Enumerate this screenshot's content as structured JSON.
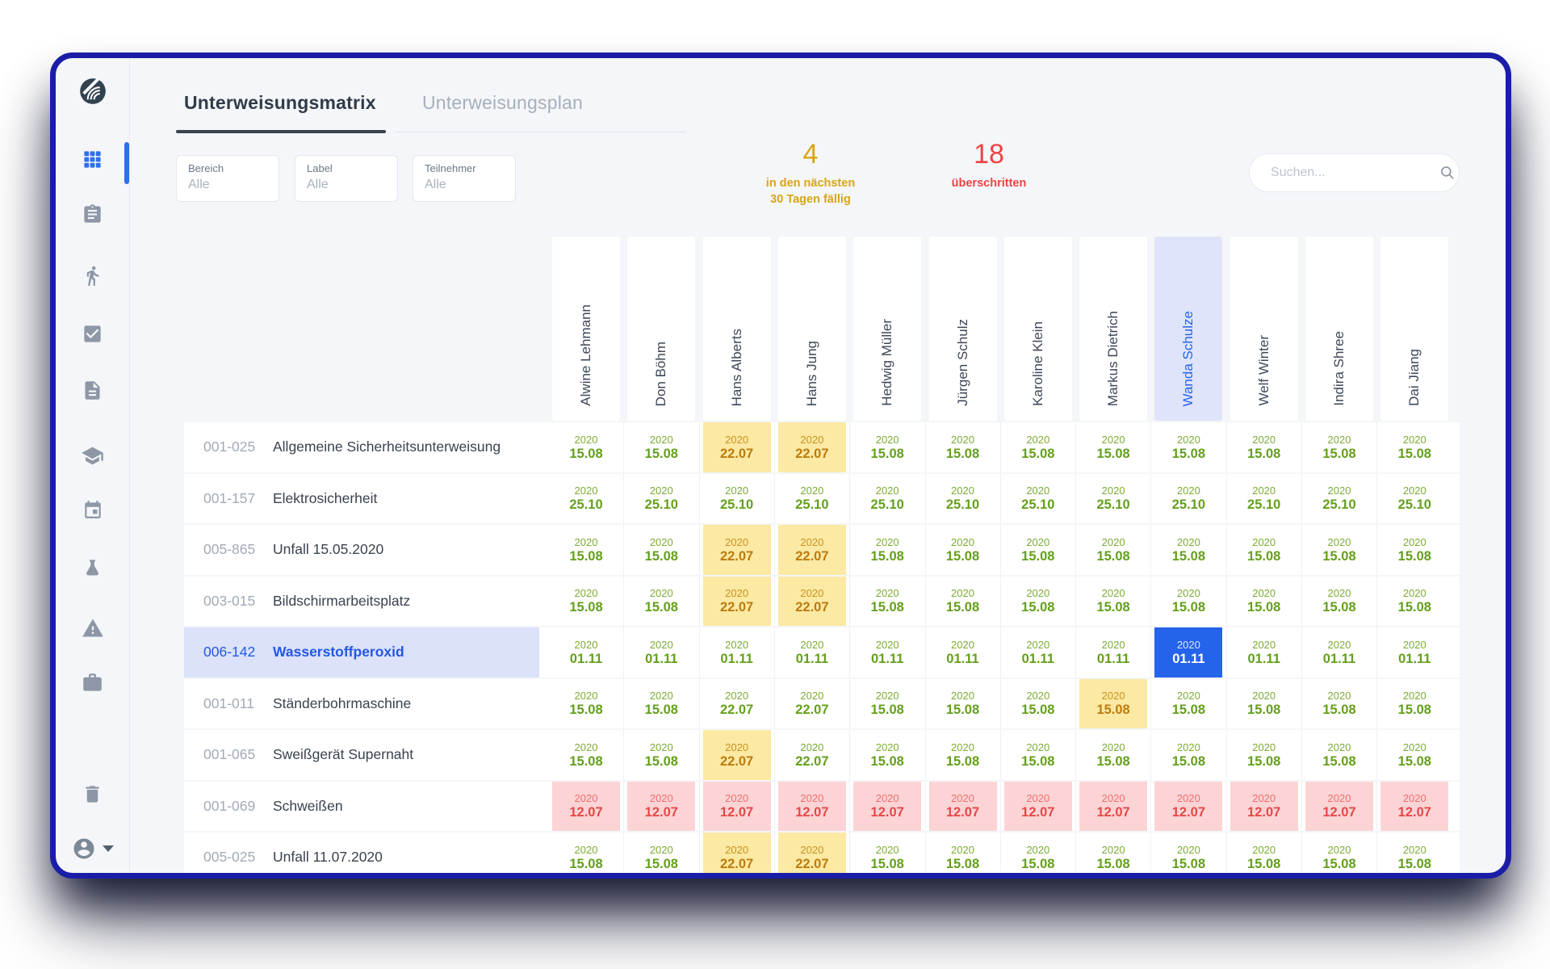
{
  "tabs": [
    {
      "label": "Unterweisungsmatrix",
      "active": true
    },
    {
      "label": "Unterweisungsplan",
      "active": false
    }
  ],
  "filters": [
    {
      "label": "Bereich",
      "value": "Alle"
    },
    {
      "label": "Label",
      "value": "Alle"
    },
    {
      "label": "Teilnehmer",
      "value": "Alle"
    }
  ],
  "stats": [
    {
      "value": "4",
      "caption_lines": [
        "in den nächsten",
        "30 Tagen fällig"
      ],
      "color": "#D9A514"
    },
    {
      "value": "18",
      "caption_lines": [
        "überschritten"
      ],
      "color": "#EE4444"
    }
  ],
  "search": {
    "placeholder": "Suchen..."
  },
  "sidebar": {
    "items": [
      {
        "icon": "logo"
      },
      {
        "icon": "grid",
        "active": true
      },
      {
        "icon": "clipboard"
      },
      {
        "icon": "walking-person"
      },
      {
        "icon": "checkbox"
      },
      {
        "icon": "document"
      },
      {
        "icon": "graduation-cap"
      },
      {
        "icon": "calendar"
      },
      {
        "icon": "flask"
      },
      {
        "icon": "warning-triangle"
      },
      {
        "icon": "briefcase"
      },
      {
        "icon": "trash"
      },
      {
        "icon": "account"
      }
    ]
  },
  "matrix": {
    "people": [
      {
        "name": "Alwine Lehmann",
        "highlighted": false
      },
      {
        "name": "Don Böhm",
        "highlighted": false
      },
      {
        "name": "Hans Alberts",
        "highlighted": false
      },
      {
        "name": "Hans Jung",
        "highlighted": false
      },
      {
        "name": "Hedwig Müller",
        "highlighted": false
      },
      {
        "name": "Jürgen Schulz",
        "highlighted": false
      },
      {
        "name": "Karoline Klein",
        "highlighted": false
      },
      {
        "name": "Markus Dietrich",
        "highlighted": false
      },
      {
        "name": "Wanda Schulze",
        "highlighted": true
      },
      {
        "name": "Welf Winter",
        "highlighted": false
      },
      {
        "name": "Indira Shree",
        "highlighted": false
      },
      {
        "name": "Dai Jiang",
        "highlighted": false
      }
    ],
    "rows": [
      {
        "code": "001-025",
        "title": "Allgemeine Sicherheitsunterweisung",
        "selected": false,
        "cells": [
          {
            "year": "2020",
            "date": "15.08",
            "status": "ok"
          },
          {
            "year": "2020",
            "date": "15.08",
            "status": "ok"
          },
          {
            "year": "2020",
            "date": "22.07",
            "status": "due"
          },
          {
            "year": "2020",
            "date": "22.07",
            "status": "due"
          },
          {
            "year": "2020",
            "date": "15.08",
            "status": "ok"
          },
          {
            "year": "2020",
            "date": "15.08",
            "status": "ok"
          },
          {
            "year": "2020",
            "date": "15.08",
            "status": "ok"
          },
          {
            "year": "2020",
            "date": "15.08",
            "status": "ok"
          },
          {
            "year": "2020",
            "date": "15.08",
            "status": "ok"
          },
          {
            "year": "2020",
            "date": "15.08",
            "status": "ok"
          },
          {
            "year": "2020",
            "date": "15.08",
            "status": "ok"
          },
          {
            "year": "2020",
            "date": "15.08",
            "status": "ok"
          }
        ]
      },
      {
        "code": "001-157",
        "title": "Elektrosicherheit",
        "selected": false,
        "cells": [
          {
            "year": "2020",
            "date": "25.10",
            "status": "ok"
          },
          {
            "year": "2020",
            "date": "25.10",
            "status": "ok"
          },
          {
            "year": "2020",
            "date": "25.10",
            "status": "ok"
          },
          {
            "year": "2020",
            "date": "25.10",
            "status": "ok"
          },
          {
            "year": "2020",
            "date": "25.10",
            "status": "ok"
          },
          {
            "year": "2020",
            "date": "25.10",
            "status": "ok"
          },
          {
            "year": "2020",
            "date": "25.10",
            "status": "ok"
          },
          {
            "year": "2020",
            "date": "25.10",
            "status": "ok"
          },
          {
            "year": "2020",
            "date": "25.10",
            "status": "ok"
          },
          {
            "year": "2020",
            "date": "25.10",
            "status": "ok"
          },
          {
            "year": "2020",
            "date": "25.10",
            "status": "ok"
          },
          {
            "year": "2020",
            "date": "25.10",
            "status": "ok"
          }
        ]
      },
      {
        "code": "005-865",
        "title": "Unfall 15.05.2020",
        "selected": false,
        "cells": [
          {
            "year": "2020",
            "date": "15.08",
            "status": "ok"
          },
          {
            "year": "2020",
            "date": "15.08",
            "status": "ok"
          },
          {
            "year": "2020",
            "date": "22.07",
            "status": "due"
          },
          {
            "year": "2020",
            "date": "22.07",
            "status": "due"
          },
          {
            "year": "2020",
            "date": "15.08",
            "status": "ok"
          },
          {
            "year": "2020",
            "date": "15.08",
            "status": "ok"
          },
          {
            "year": "2020",
            "date": "15.08",
            "status": "ok"
          },
          {
            "year": "2020",
            "date": "15.08",
            "status": "ok"
          },
          {
            "year": "2020",
            "date": "15.08",
            "status": "ok"
          },
          {
            "year": "2020",
            "date": "15.08",
            "status": "ok"
          },
          {
            "year": "2020",
            "date": "15.08",
            "status": "ok"
          },
          {
            "year": "2020",
            "date": "15.08",
            "status": "ok"
          }
        ]
      },
      {
        "code": "003-015",
        "title": "Bildschirmarbeitsplatz",
        "selected": false,
        "cells": [
          {
            "year": "2020",
            "date": "15.08",
            "status": "ok"
          },
          {
            "year": "2020",
            "date": "15.08",
            "status": "ok"
          },
          {
            "year": "2020",
            "date": "22.07",
            "status": "due"
          },
          {
            "year": "2020",
            "date": "22.07",
            "status": "due"
          },
          {
            "year": "2020",
            "date": "15.08",
            "status": "ok"
          },
          {
            "year": "2020",
            "date": "15.08",
            "status": "ok"
          },
          {
            "year": "2020",
            "date": "15.08",
            "status": "ok"
          },
          {
            "year": "2020",
            "date": "15.08",
            "status": "ok"
          },
          {
            "year": "2020",
            "date": "15.08",
            "status": "ok"
          },
          {
            "year": "2020",
            "date": "15.08",
            "status": "ok"
          },
          {
            "year": "2020",
            "date": "15.08",
            "status": "ok"
          },
          {
            "year": "2020",
            "date": "15.08",
            "status": "ok"
          }
        ]
      },
      {
        "code": "006-142",
        "title": "Wasserstoffperoxid",
        "selected": true,
        "cells": [
          {
            "year": "2020",
            "date": "01.11",
            "status": "ok"
          },
          {
            "year": "2020",
            "date": "01.11",
            "status": "ok"
          },
          {
            "year": "2020",
            "date": "01.11",
            "status": "ok"
          },
          {
            "year": "2020",
            "date": "01.11",
            "status": "ok"
          },
          {
            "year": "2020",
            "date": "01.11",
            "status": "ok"
          },
          {
            "year": "2020",
            "date": "01.11",
            "status": "ok"
          },
          {
            "year": "2020",
            "date": "01.11",
            "status": "ok"
          },
          {
            "year": "2020",
            "date": "01.11",
            "status": "ok"
          },
          {
            "year": "2020",
            "date": "01.11",
            "status": "selected"
          },
          {
            "year": "2020",
            "date": "01.11",
            "status": "ok"
          },
          {
            "year": "2020",
            "date": "01.11",
            "status": "ok"
          },
          {
            "year": "2020",
            "date": "01.11",
            "status": "ok"
          }
        ]
      },
      {
        "code": "001-011",
        "title": "Ständerbohrmaschine",
        "selected": false,
        "cells": [
          {
            "year": "2020",
            "date": "15.08",
            "status": "ok"
          },
          {
            "year": "2020",
            "date": "15.08",
            "status": "ok"
          },
          {
            "year": "2020",
            "date": "22.07",
            "status": "ok"
          },
          {
            "year": "2020",
            "date": "22.07",
            "status": "ok"
          },
          {
            "year": "2020",
            "date": "15.08",
            "status": "ok"
          },
          {
            "year": "2020",
            "date": "15.08",
            "status": "ok"
          },
          {
            "year": "2020",
            "date": "15.08",
            "status": "ok"
          },
          {
            "year": "2020",
            "date": "15.08",
            "status": "due"
          },
          {
            "year": "2020",
            "date": "15.08",
            "status": "ok"
          },
          {
            "year": "2020",
            "date": "15.08",
            "status": "ok"
          },
          {
            "year": "2020",
            "date": "15.08",
            "status": "ok"
          },
          {
            "year": "2020",
            "date": "15.08",
            "status": "ok"
          }
        ]
      },
      {
        "code": "001-065",
        "title": "Sweißgerät Supernaht",
        "selected": false,
        "cells": [
          {
            "year": "2020",
            "date": "15.08",
            "status": "ok"
          },
          {
            "year": "2020",
            "date": "15.08",
            "status": "ok"
          },
          {
            "year": "2020",
            "date": "22.07",
            "status": "due"
          },
          {
            "year": "2020",
            "date": "22.07",
            "status": "ok"
          },
          {
            "year": "2020",
            "date": "15.08",
            "status": "ok"
          },
          {
            "year": "2020",
            "date": "15.08",
            "status": "ok"
          },
          {
            "year": "2020",
            "date": "15.08",
            "status": "ok"
          },
          {
            "year": "2020",
            "date": "15.08",
            "status": "ok"
          },
          {
            "year": "2020",
            "date": "15.08",
            "status": "ok"
          },
          {
            "year": "2020",
            "date": "15.08",
            "status": "ok"
          },
          {
            "year": "2020",
            "date": "15.08",
            "status": "ok"
          },
          {
            "year": "2020",
            "date": "15.08",
            "status": "ok"
          }
        ]
      },
      {
        "code": "001-069",
        "title": "Schweißen",
        "selected": false,
        "cells": [
          {
            "year": "2020",
            "date": "12.07",
            "status": "overdue"
          },
          {
            "year": "2020",
            "date": "12.07",
            "status": "overdue"
          },
          {
            "year": "2020",
            "date": "12.07",
            "status": "overdue"
          },
          {
            "year": "2020",
            "date": "12.07",
            "status": "overdue"
          },
          {
            "year": "2020",
            "date": "12.07",
            "status": "overdue"
          },
          {
            "year": "2020",
            "date": "12.07",
            "status": "overdue"
          },
          {
            "year": "2020",
            "date": "12.07",
            "status": "overdue"
          },
          {
            "year": "2020",
            "date": "12.07",
            "status": "overdue"
          },
          {
            "year": "2020",
            "date": "12.07",
            "status": "overdue"
          },
          {
            "year": "2020",
            "date": "12.07",
            "status": "overdue"
          },
          {
            "year": "2020",
            "date": "12.07",
            "status": "overdue"
          },
          {
            "year": "2020",
            "date": "12.07",
            "status": "overdue"
          }
        ]
      },
      {
        "code": "005-025",
        "title": "Unfall 11.07.2020",
        "selected": false,
        "cells": [
          {
            "year": "2020",
            "date": "15.08",
            "status": "ok"
          },
          {
            "year": "2020",
            "date": "15.08",
            "status": "ok"
          },
          {
            "year": "2020",
            "date": "22.07",
            "status": "due"
          },
          {
            "year": "2020",
            "date": "22.07",
            "status": "due"
          },
          {
            "year": "2020",
            "date": "15.08",
            "status": "ok"
          },
          {
            "year": "2020",
            "date": "15.08",
            "status": "ok"
          },
          {
            "year": "2020",
            "date": "15.08",
            "status": "ok"
          },
          {
            "year": "2020",
            "date": "15.08",
            "status": "ok"
          },
          {
            "year": "2020",
            "date": "15.08",
            "status": "ok"
          },
          {
            "year": "2020",
            "date": "15.08",
            "status": "ok"
          },
          {
            "year": "2020",
            "date": "15.08",
            "status": "ok"
          },
          {
            "year": "2020",
            "date": "15.08",
            "status": "ok"
          }
        ]
      }
    ]
  },
  "colors": {
    "window_border": "#1A1EA6",
    "accent_blue": "#2563EB",
    "ok_green": "#649F1C",
    "due_bg": "#FBE9A4",
    "due_text": "#BC7B0D",
    "overdue_bg": "#FCD4D6",
    "overdue_text": "#E54848",
    "selected_cell_bg": "#2563EB",
    "selected_row_bg": "#DBE2F9",
    "highlight_column_bg": "#DFE4FA",
    "stat_amber": "#D9A514",
    "stat_red": "#EE4444"
  }
}
